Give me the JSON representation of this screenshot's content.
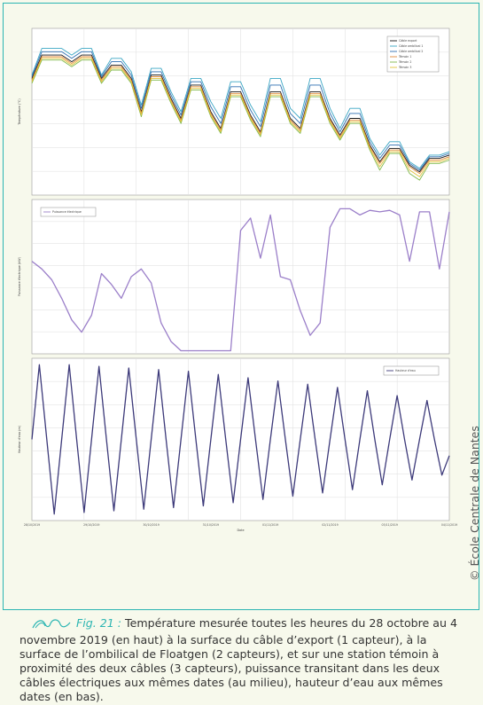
{
  "caption": {
    "fig_label": "Fig. 21 :",
    "text": "Température mesurée toutes les heures du 28 octobre au 4 novembre 2019 (en haut) à la surface du câble d’export (1 capteur), à la surface de l’ombilical de Floatgen (2 capteurs), et sur une station témoin à proximité des deux câbles (3 capteurs), puissance transitant dans les deux câbles électriques aux mêmes dates (au milieu), hauteur d’eau aux mêmes dates (en bas)."
  },
  "credit": "© École Centrale de Nantes",
  "colors": {
    "frame": "#2bb5b2",
    "background": "#f7f9ec",
    "power": "#9b7fc9",
    "tide": "#3d3a7a"
  },
  "chart_data": [
    {
      "type": "line",
      "panel": "top",
      "ylabel": "Température (°C)",
      "ylim": [
        0,
        1
      ],
      "grid": true,
      "legend": "top-right",
      "legend_entries": [
        "Câble export",
        "Câble ombilical 1",
        "Câble ombilical 2",
        "Témoin 1",
        "Témoin 2",
        "Témoin 3"
      ],
      "x": [
        0,
        4,
        8,
        12,
        16,
        20,
        24,
        28,
        32,
        36,
        40,
        44,
        48,
        52,
        56,
        60,
        64,
        68,
        72,
        76,
        80,
        84,
        88,
        92,
        96,
        100,
        104,
        108,
        112,
        116,
        120,
        124,
        128,
        132,
        136,
        140,
        144,
        148,
        152,
        156,
        160,
        164,
        168
      ],
      "series": [
        {
          "color": "#1a1a1a",
          "values": [
            0.7,
            0.84,
            0.84,
            0.84,
            0.8,
            0.84,
            0.84,
            0.7,
            0.78,
            0.78,
            0.7,
            0.5,
            0.72,
            0.72,
            0.58,
            0.46,
            0.66,
            0.66,
            0.5,
            0.4,
            0.62,
            0.62,
            0.48,
            0.38,
            0.62,
            0.62,
            0.46,
            0.4,
            0.62,
            0.62,
            0.46,
            0.36,
            0.46,
            0.46,
            0.3,
            0.2,
            0.28,
            0.28,
            0.18,
            0.14,
            0.22,
            0.22,
            0.24
          ]
        },
        {
          "color": "#3aa6c4",
          "values": [
            0.72,
            0.88,
            0.88,
            0.88,
            0.84,
            0.88,
            0.88,
            0.72,
            0.82,
            0.82,
            0.74,
            0.54,
            0.76,
            0.76,
            0.62,
            0.5,
            0.7,
            0.7,
            0.56,
            0.46,
            0.68,
            0.68,
            0.54,
            0.44,
            0.7,
            0.7,
            0.52,
            0.46,
            0.7,
            0.7,
            0.52,
            0.4,
            0.52,
            0.52,
            0.34,
            0.24,
            0.32,
            0.32,
            0.2,
            0.16,
            0.24,
            0.24,
            0.26
          ]
        },
        {
          "color": "#2f6fb0",
          "values": [
            0.71,
            0.86,
            0.86,
            0.86,
            0.82,
            0.86,
            0.86,
            0.71,
            0.8,
            0.8,
            0.72,
            0.52,
            0.74,
            0.74,
            0.6,
            0.48,
            0.68,
            0.68,
            0.53,
            0.43,
            0.65,
            0.65,
            0.51,
            0.41,
            0.66,
            0.66,
            0.49,
            0.43,
            0.66,
            0.66,
            0.49,
            0.38,
            0.49,
            0.49,
            0.32,
            0.22,
            0.3,
            0.3,
            0.19,
            0.15,
            0.23,
            0.23,
            0.25
          ]
        },
        {
          "color": "#e08a3c",
          "values": [
            0.69,
            0.83,
            0.83,
            0.83,
            0.79,
            0.83,
            0.83,
            0.69,
            0.77,
            0.77,
            0.69,
            0.49,
            0.71,
            0.71,
            0.57,
            0.45,
            0.65,
            0.65,
            0.49,
            0.39,
            0.61,
            0.61,
            0.47,
            0.37,
            0.61,
            0.61,
            0.45,
            0.39,
            0.61,
            0.61,
            0.45,
            0.35,
            0.45,
            0.45,
            0.29,
            0.19,
            0.27,
            0.27,
            0.17,
            0.13,
            0.21,
            0.21,
            0.23
          ]
        },
        {
          "color": "#7fb84a",
          "values": [
            0.67,
            0.81,
            0.81,
            0.81,
            0.77,
            0.81,
            0.81,
            0.67,
            0.75,
            0.75,
            0.67,
            0.47,
            0.69,
            0.69,
            0.55,
            0.43,
            0.63,
            0.63,
            0.47,
            0.37,
            0.59,
            0.59,
            0.45,
            0.35,
            0.59,
            0.59,
            0.43,
            0.37,
            0.59,
            0.59,
            0.43,
            0.33,
            0.43,
            0.43,
            0.27,
            0.15,
            0.25,
            0.25,
            0.13,
            0.09,
            0.19,
            0.19,
            0.21
          ]
        },
        {
          "color": "#e2c23a",
          "values": [
            0.68,
            0.82,
            0.82,
            0.82,
            0.78,
            0.82,
            0.82,
            0.68,
            0.76,
            0.76,
            0.68,
            0.48,
            0.7,
            0.7,
            0.56,
            0.44,
            0.64,
            0.64,
            0.48,
            0.38,
            0.6,
            0.6,
            0.46,
            0.36,
            0.6,
            0.6,
            0.44,
            0.38,
            0.6,
            0.6,
            0.44,
            0.34,
            0.44,
            0.44,
            0.28,
            0.17,
            0.26,
            0.26,
            0.15,
            0.11,
            0.2,
            0.2,
            0.22
          ]
        }
      ]
    },
    {
      "type": "line",
      "panel": "middle",
      "ylabel": "Puissance électrique (kW)",
      "ylim": [
        0,
        1
      ],
      "grid": true,
      "legend": "top-left",
      "legend_entries": [
        "Puissance électrique"
      ],
      "x": [
        0,
        4,
        8,
        12,
        16,
        20,
        24,
        28,
        32,
        36,
        40,
        44,
        48,
        52,
        56,
        60,
        64,
        68,
        72,
        76,
        80,
        84,
        88,
        92,
        96,
        100,
        104,
        108,
        112,
        116,
        120,
        124,
        128,
        132,
        136,
        140,
        144,
        148,
        152,
        156,
        160,
        164,
        168
      ],
      "series": [
        {
          "color": "#9b7fc9",
          "values": [
            0.6,
            0.55,
            0.48,
            0.36,
            0.22,
            0.14,
            0.25,
            0.52,
            0.45,
            0.36,
            0.5,
            0.55,
            0.46,
            0.2,
            0.08,
            0.02,
            0.02,
            0.02,
            0.02,
            0.02,
            0.02,
            0.8,
            0.88,
            0.62,
            0.9,
            0.5,
            0.48,
            0.28,
            0.12,
            0.2,
            0.82,
            0.94,
            0.94,
            0.9,
            0.93,
            0.92,
            0.93,
            0.9,
            0.6,
            0.92,
            0.92,
            0.55,
            0.92
          ]
        }
      ]
    },
    {
      "type": "line",
      "panel": "bottom",
      "xlabel": "Date",
      "ylabel": "Hauteur d'eau (m)",
      "ylim": [
        0,
        1
      ],
      "grid": true,
      "legend": "top-right",
      "legend_entries": [
        "Hauteur d'eau"
      ],
      "x_ticks": [
        "28/10/2019",
        "29/10/2019",
        "30/10/2019",
        "31/10/2019",
        "01/11/2019",
        "02/11/2019",
        "03/11/2019",
        "04/11/2019"
      ],
      "x": [
        0,
        3,
        6,
        9,
        12,
        15,
        18,
        21,
        24,
        27,
        30,
        33,
        36,
        39,
        42,
        45,
        48,
        51,
        54,
        57,
        60,
        63,
        66,
        69,
        72,
        75,
        78,
        81,
        84,
        87,
        90,
        93,
        96,
        99,
        102,
        105,
        108,
        111,
        114,
        117,
        120,
        123,
        126,
        129,
        132,
        135,
        138,
        141,
        144,
        147,
        150,
        153,
        156,
        159,
        162,
        165,
        168
      ],
      "series": [
        {
          "color": "#3d3a7a",
          "values": [
            0.5,
            0.96,
            0.5,
            0.04,
            0.5,
            0.96,
            0.5,
            0.05,
            0.5,
            0.95,
            0.5,
            0.06,
            0.5,
            0.94,
            0.5,
            0.07,
            0.5,
            0.93,
            0.5,
            0.08,
            0.5,
            0.92,
            0.5,
            0.09,
            0.5,
            0.9,
            0.5,
            0.11,
            0.5,
            0.88,
            0.5,
            0.13,
            0.5,
            0.86,
            0.5,
            0.15,
            0.5,
            0.84,
            0.5,
            0.17,
            0.5,
            0.82,
            0.5,
            0.19,
            0.5,
            0.8,
            0.5,
            0.22,
            0.5,
            0.77,
            0.5,
            0.25,
            0.5,
            0.74,
            0.5,
            0.28,
            0.4
          ]
        }
      ]
    }
  ]
}
